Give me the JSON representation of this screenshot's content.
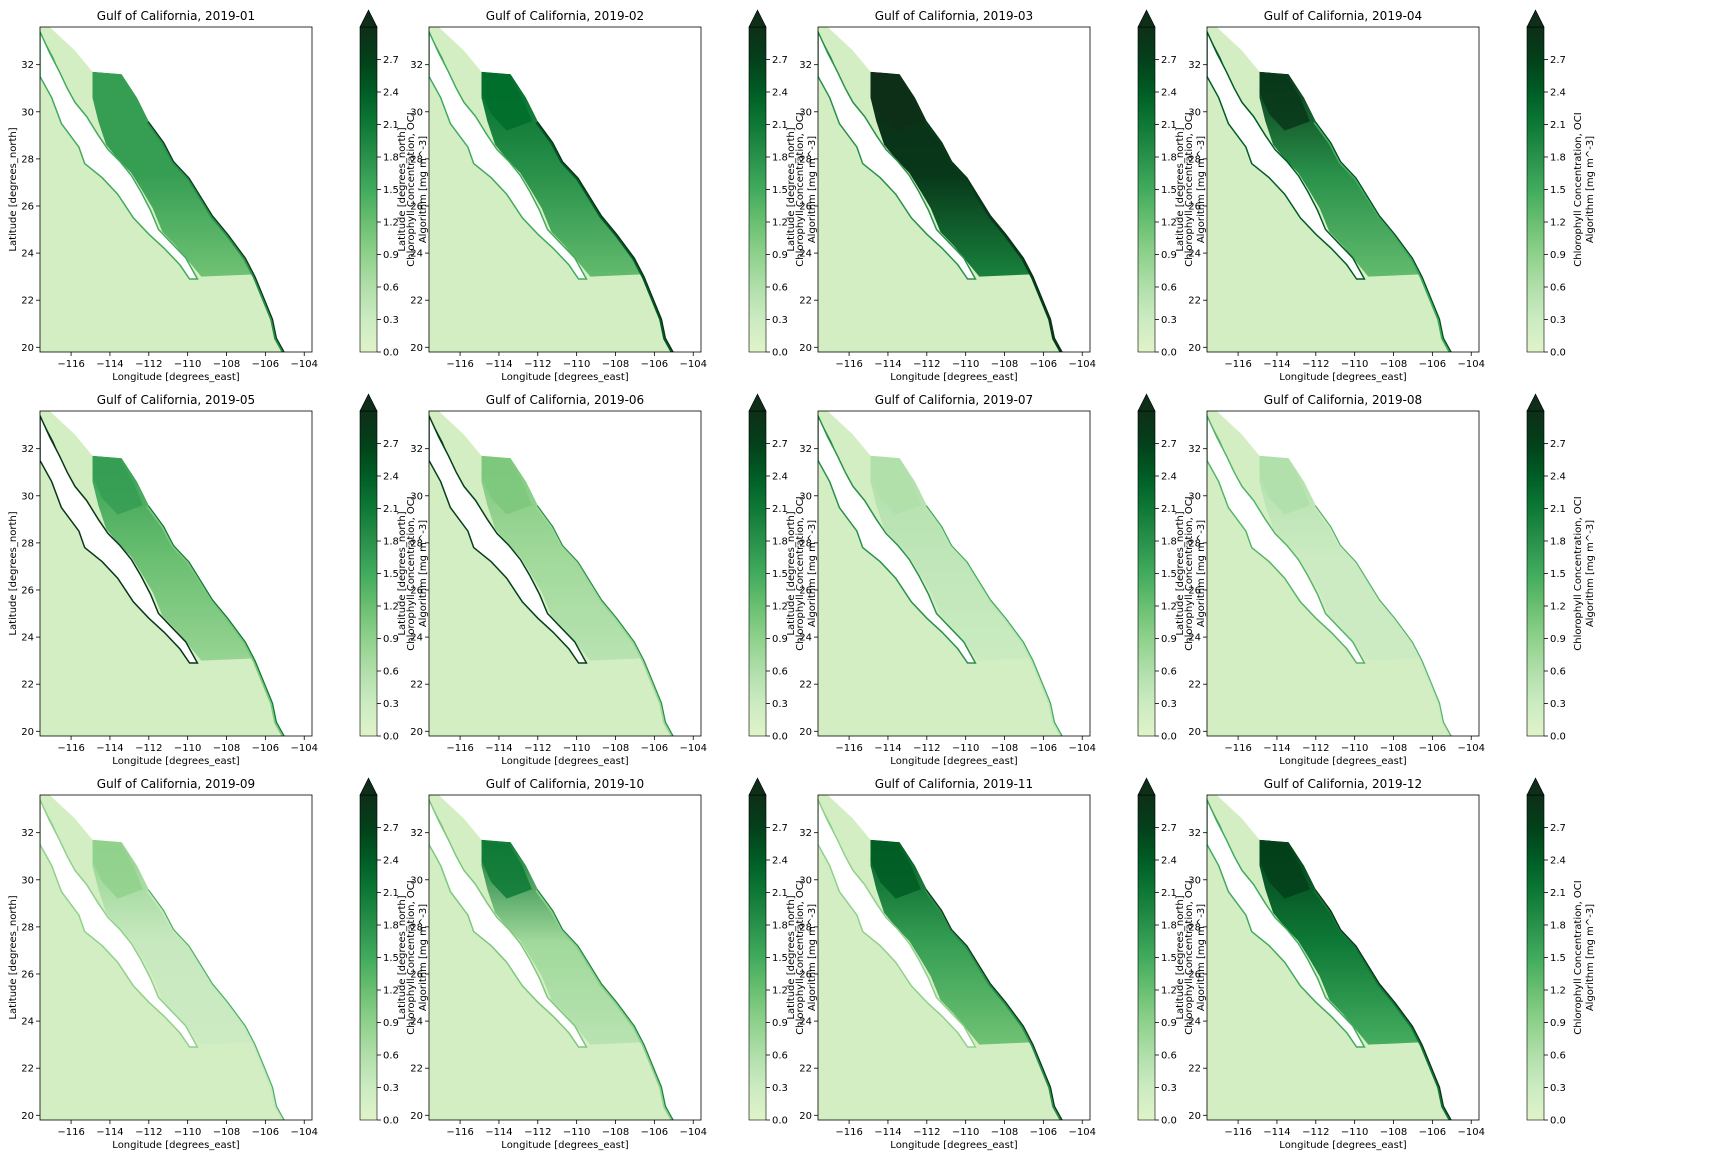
{
  "panels": [
    {
      "title": "Gulf of California, 2019-01",
      "bloom": 0.55,
      "northern": 0.55,
      "mainland": 0.6,
      "coast": 0.5
    },
    {
      "title": "Gulf of California, 2019-02",
      "bloom": 0.6,
      "northern": 0.75,
      "mainland": 0.8,
      "coast": 0.5
    },
    {
      "title": "Gulf of California, 2019-03",
      "bloom": 0.95,
      "northern": 1.0,
      "mainland": 0.9,
      "coast": 0.6
    },
    {
      "title": "Gulf of California, 2019-04",
      "bloom": 0.6,
      "northern": 0.95,
      "mainland": 0.5,
      "coast": 0.8
    },
    {
      "title": "Gulf of California, 2019-05",
      "bloom": 0.4,
      "northern": 0.55,
      "mainland": 0.35,
      "coast": 0.95
    },
    {
      "title": "Gulf of California, 2019-06",
      "bloom": 0.25,
      "northern": 0.35,
      "mainland": 0.25,
      "coast": 0.9
    },
    {
      "title": "Gulf of California, 2019-07",
      "bloom": 0.15,
      "northern": 0.2,
      "mainland": 0.15,
      "coast": 0.6
    },
    {
      "title": "Gulf of California, 2019-08",
      "bloom": 0.1,
      "northern": 0.2,
      "mainland": 0.1,
      "coast": 0.45
    },
    {
      "title": "Gulf of California, 2019-09",
      "bloom": 0.12,
      "northern": 0.3,
      "mainland": 0.12,
      "coast": 0.3
    },
    {
      "title": "Gulf of California, 2019-10",
      "bloom": 0.25,
      "northern": 0.7,
      "mainland": 0.3,
      "coast": 0.35
    },
    {
      "title": "Gulf of California, 2019-11",
      "bloom": 0.55,
      "northern": 0.8,
      "mainland": 0.6,
      "coast": 0.3
    },
    {
      "title": "Gulf of California, 2019-12",
      "bloom": 0.7,
      "northern": 0.9,
      "mainland": 0.7,
      "coast": 0.5
    }
  ],
  "axes": {
    "xlabel": "Longitude [degrees_east]",
    "ylabel": "Latitude [degrees_north]",
    "xticks": [
      -116,
      -114,
      -112,
      -110,
      -108,
      -106,
      -104
    ],
    "xtick_labels": [
      "−116",
      "−114",
      "−112",
      "−110",
      "−108",
      "−106",
      "−104"
    ],
    "yticks": [
      20,
      22,
      24,
      26,
      28,
      30,
      32
    ],
    "xlim": [
      -117.6,
      -103.6
    ],
    "ylim": [
      19.8,
      33.6
    ]
  },
  "colorbar": {
    "label_line1": "Chlorophyll Concentration, OCI",
    "label_line2": "Algorithm [mg m^-3]",
    "ticks": [
      0.0,
      0.3,
      0.6,
      0.9,
      1.2,
      1.5,
      1.8,
      2.1,
      2.4,
      2.7
    ],
    "tick_labels": [
      "0.0",
      "0.3",
      "0.6",
      "0.9",
      "1.2",
      "1.5",
      "1.8",
      "2.1",
      "2.4",
      "2.7"
    ],
    "range": [
      0,
      3
    ],
    "extend": "max",
    "colormap": "Greens",
    "stops": [
      "#e0f3c8",
      "#c7e9c0",
      "#a1d99b",
      "#74c476",
      "#41ab5d",
      "#238b45",
      "#006d2c",
      "#00441b",
      "#0e2e18"
    ]
  }
}
